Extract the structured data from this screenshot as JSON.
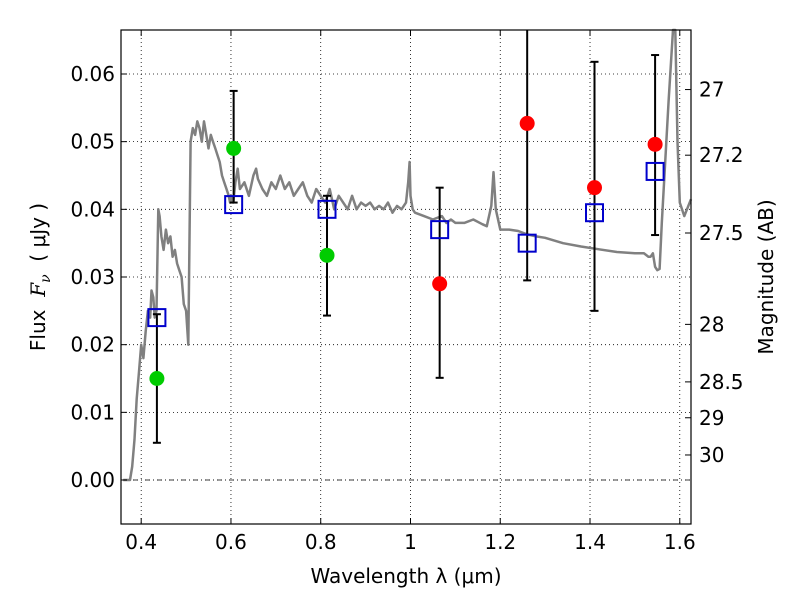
{
  "chart_data": {
    "type": "scatter",
    "xlabel": "Wavelength  λ (μm)",
    "ylabel": {
      "prefix": "Flux  ",
      "symbol": "F",
      "subscript": "ν",
      "suffix": "  ( μJy )"
    },
    "y2label": "Magnitude (AB)",
    "xlim": [
      0.355,
      1.625
    ],
    "ylim": [
      -0.0065,
      0.0665
    ],
    "grid": true,
    "x_ticks": [
      {
        "value": 0.4,
        "label": "0.4"
      },
      {
        "value": 0.6,
        "label": "0.6"
      },
      {
        "value": 0.8,
        "label": "0.8"
      },
      {
        "value": 1.0,
        "label": "1"
      },
      {
        "value": 1.2,
        "label": "1.2"
      },
      {
        "value": 1.4,
        "label": "1.4"
      },
      {
        "value": 1.6,
        "label": "1.6"
      }
    ],
    "y_ticks": [
      {
        "value": 0.0,
        "label": "0.00"
      },
      {
        "value": 0.01,
        "label": "0.01"
      },
      {
        "value": 0.02,
        "label": "0.02"
      },
      {
        "value": 0.03,
        "label": "0.03"
      },
      {
        "value": 0.04,
        "label": "0.04"
      },
      {
        "value": 0.05,
        "label": "0.05"
      },
      {
        "value": 0.06,
        "label": "0.06"
      }
    ],
    "mag_ticks": [
      {
        "flux": 0.0577,
        "label": "27"
      },
      {
        "flux": 0.048,
        "label": "27.2"
      },
      {
        "flux": 0.0365,
        "label": "27.5"
      },
      {
        "flux": 0.023,
        "label": "28"
      },
      {
        "flux": 0.0145,
        "label": "28.5"
      },
      {
        "flux": 0.0092,
        "label": "29"
      },
      {
        "flux": 0.0037,
        "label": "30"
      }
    ],
    "series": [
      {
        "name": "observed flux (green)",
        "color": "#00cc00",
        "marker": "circle",
        "points": [
          {
            "x": 0.435,
            "y": 0.015
          },
          {
            "x": 0.606,
            "y": 0.049
          },
          {
            "x": 0.814,
            "y": 0.0332
          },
          {
            "x": 1.0,
            "y": null
          }
        ]
      },
      {
        "name": "observed flux (red)",
        "color": "#ff0000",
        "marker": "circle",
        "points": [
          {
            "x": 1.065,
            "y": 0.029
          },
          {
            "x": 1.26,
            "y": 0.0527
          },
          {
            "x": 1.41,
            "y": 0.0432
          },
          {
            "x": 1.545,
            "y": 0.0496
          }
        ]
      },
      {
        "name": "model photometry",
        "color": "#0000cc",
        "marker": "square",
        "points": [
          {
            "x": 0.435,
            "y": 0.024
          },
          {
            "x": 0.606,
            "y": 0.0407
          },
          {
            "x": 0.814,
            "y": 0.04
          },
          {
            "x": 1.065,
            "y": 0.037
          },
          {
            "x": 1.26,
            "y": 0.035
          },
          {
            "x": 1.41,
            "y": 0.0395
          },
          {
            "x": 1.545,
            "y": 0.0456
          }
        ]
      },
      {
        "name": "error bars",
        "color": "#000000",
        "bars": [
          {
            "x": 0.435,
            "low": 0.0055,
            "high": 0.0245
          },
          {
            "x": 0.606,
            "low": 0.041,
            "high": 0.0575
          },
          {
            "x": 0.814,
            "low": 0.0243,
            "high": 0.042
          },
          {
            "x": 1.065,
            "low": 0.0151,
            "high": 0.0432
          },
          {
            "x": 1.26,
            "low": 0.0295,
            "high": 0.07
          },
          {
            "x": 1.41,
            "low": 0.025,
            "high": 0.0618
          },
          {
            "x": 1.545,
            "low": 0.0362,
            "high": 0.0628
          }
        ]
      },
      {
        "name": "best-fit SED",
        "color": "#808080",
        "type": "line",
        "x": [
          0.36,
          0.375,
          0.38,
          0.385,
          0.39,
          0.395,
          0.4,
          0.405,
          0.41,
          0.415,
          0.42,
          0.423,
          0.427,
          0.43,
          0.434,
          0.438,
          0.441,
          0.445,
          0.45,
          0.455,
          0.46,
          0.465,
          0.47,
          0.475,
          0.48,
          0.485,
          0.49,
          0.495,
          0.5,
          0.505,
          0.51,
          0.515,
          0.52,
          0.525,
          0.53,
          0.535,
          0.54,
          0.545,
          0.55,
          0.555,
          0.56,
          0.565,
          0.57,
          0.575,
          0.58,
          0.585,
          0.59,
          0.595,
          0.598,
          0.6,
          0.605,
          0.61,
          0.615,
          0.62,
          0.63,
          0.64,
          0.65,
          0.656,
          0.66,
          0.67,
          0.68,
          0.69,
          0.7,
          0.71,
          0.72,
          0.73,
          0.74,
          0.75,
          0.76,
          0.77,
          0.78,
          0.79,
          0.8,
          0.81,
          0.82,
          0.83,
          0.84,
          0.85,
          0.86,
          0.87,
          0.88,
          0.89,
          0.9,
          0.91,
          0.92,
          0.93,
          0.94,
          0.95,
          0.96,
          0.97,
          0.98,
          0.99,
          0.995,
          0.998,
          1.0,
          1.005,
          1.01,
          1.03,
          1.05,
          1.07,
          1.08,
          1.09,
          1.1,
          1.12,
          1.14,
          1.16,
          1.17,
          1.18,
          1.185,
          1.19,
          1.2,
          1.22,
          1.24,
          1.26,
          1.28,
          1.3,
          1.34,
          1.38,
          1.42,
          1.46,
          1.5,
          1.52,
          1.53,
          1.535,
          1.54,
          1.545,
          1.55,
          1.555,
          1.56,
          1.575,
          1.585,
          1.59,
          1.595,
          1.6,
          1.61,
          1.625
        ],
        "y": [
          0.0,
          0.0,
          0.002,
          0.006,
          0.012,
          0.016,
          0.02,
          0.018,
          0.022,
          0.025,
          0.024,
          0.028,
          0.027,
          0.024,
          0.025,
          0.04,
          0.039,
          0.036,
          0.034,
          0.037,
          0.035,
          0.036,
          0.033,
          0.034,
          0.032,
          0.031,
          0.03,
          0.026,
          0.025,
          0.02,
          0.05,
          0.052,
          0.051,
          0.053,
          0.052,
          0.05,
          0.053,
          0.051,
          0.049,
          0.051,
          0.05,
          0.049,
          0.048,
          0.047,
          0.045,
          0.044,
          0.043,
          0.042,
          0.041,
          0.042,
          0.041,
          0.044,
          0.046,
          0.043,
          0.044,
          0.042,
          0.045,
          0.046,
          0.0445,
          0.043,
          0.042,
          0.044,
          0.043,
          0.045,
          0.043,
          0.044,
          0.042,
          0.043,
          0.044,
          0.042,
          0.041,
          0.043,
          0.042,
          0.041,
          0.043,
          0.04,
          0.042,
          0.041,
          0.04,
          0.042,
          0.04,
          0.041,
          0.0405,
          0.041,
          0.04,
          0.0405,
          0.04,
          0.041,
          0.0395,
          0.0405,
          0.04,
          0.041,
          0.044,
          0.047,
          0.042,
          0.04,
          0.0395,
          0.039,
          0.0385,
          0.039,
          0.038,
          0.0385,
          0.038,
          0.038,
          0.0385,
          0.0378,
          0.0375,
          0.0405,
          0.0455,
          0.04,
          0.037,
          0.037,
          0.0368,
          0.0363,
          0.036,
          0.0358,
          0.035,
          0.0345,
          0.0341,
          0.0337,
          0.0335,
          0.0335,
          0.033,
          0.033,
          0.0335,
          0.0315,
          0.031,
          0.0312,
          0.038,
          0.056,
          0.07,
          0.07,
          0.05,
          0.041,
          0.039,
          0.0415
        ]
      }
    ]
  }
}
